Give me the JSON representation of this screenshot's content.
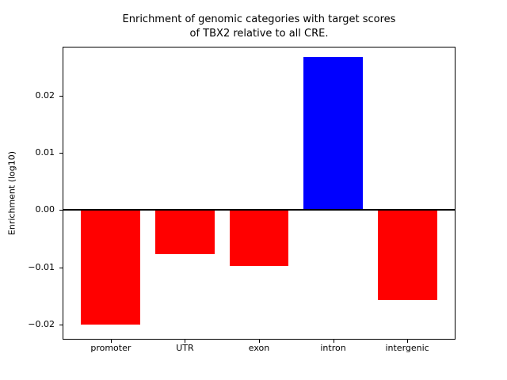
{
  "figure": {
    "title": "Enrichment of genomic categories with target scores\nof TBX2 relative to all CRE.",
    "ylabel": "Enrichment (log10)"
  },
  "chart_data": {
    "type": "bar",
    "title": "Enrichment of genomic categories with target scores of TBX2 relative to all CRE.",
    "xlabel": "",
    "ylabel": "Enrichment (log10)",
    "categories": [
      "promoter",
      "UTR",
      "exon",
      "intron",
      "intergenic"
    ],
    "values": [
      -0.02,
      -0.0077,
      -0.0098,
      0.0267,
      -0.0157
    ],
    "positive_color": "#0000ff",
    "negative_color": "#ff0000",
    "bar_width": 0.8,
    "xlim": [
      -0.64,
      4.64
    ],
    "ylim": [
      -0.0225,
      0.0284
    ],
    "yticks": [
      0.02,
      0.01,
      0.0,
      -0.01,
      -0.02
    ],
    "ytick_labels": [
      "0.02",
      "0.01",
      "0.00",
      "−0.01",
      "−0.02"
    ],
    "zero_line": true,
    "grid": false,
    "legend": null,
    "frame_color": "#000000",
    "background_color": "#ffffff"
  }
}
